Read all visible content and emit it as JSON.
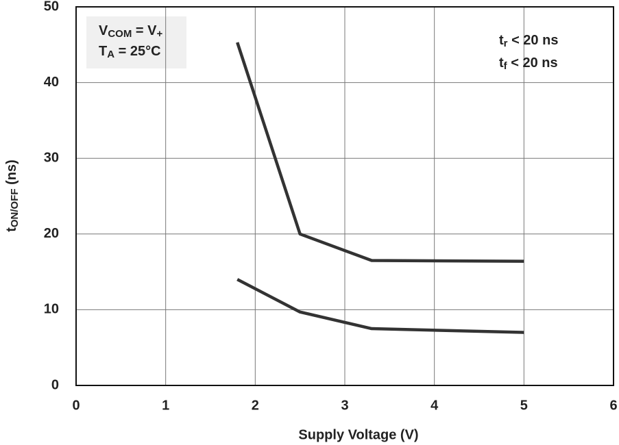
{
  "chart_data": {
    "type": "line",
    "x_label": "Supply Voltage (V)",
    "y_label": [
      {
        "text": "t"
      },
      {
        "text": "ON/OFF",
        "sub": true
      },
      {
        "text": " (ns)"
      }
    ],
    "xlim": [
      0,
      6
    ],
    "xticks": [
      0,
      1,
      2,
      3,
      4,
      5,
      6
    ],
    "ylim": [
      0,
      50
    ],
    "yticks": [
      0,
      10,
      20,
      30,
      40,
      50
    ],
    "grid": true,
    "series": [
      {
        "color": "#333333",
        "x": [
          1.8,
          2.5,
          3.3,
          5
        ],
        "values": [
          45.3,
          20,
          16.5,
          16.4
        ]
      },
      {
        "color": "#333333",
        "x": [
          1.8,
          2.5,
          3.3,
          5
        ],
        "values": [
          14,
          9.7,
          7.5,
          7.0
        ]
      }
    ],
    "annotations_left": [
      [
        {
          "text": "V"
        },
        {
          "text": "COM",
          "sub": true
        },
        {
          "text": " = V"
        },
        {
          "text": "+",
          "sub": true
        }
      ],
      [
        {
          "text": "T"
        },
        {
          "text": "A",
          "sub": true
        },
        {
          "text": " = 25°C"
        }
      ]
    ],
    "annotations_right": [
      [
        {
          "text": "t"
        },
        {
          "text": "r",
          "sub": true
        },
        {
          "text": " < 20 ns"
        }
      ],
      [
        {
          "text": "t"
        },
        {
          "text": "f",
          "sub": true
        },
        {
          "text": " < 20 ns"
        }
      ]
    ]
  }
}
